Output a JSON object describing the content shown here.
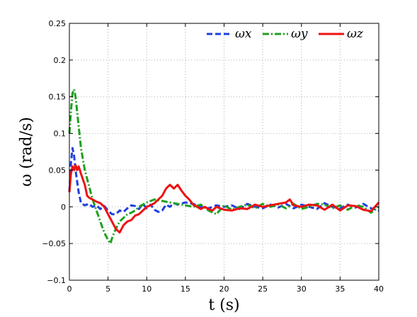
{
  "chart_data": {
    "type": "line",
    "title": "",
    "xlabel": "t (s)",
    "ylabel": "ω (rad/s)",
    "xlim": [
      0,
      40
    ],
    "ylim": [
      -0.1,
      0.25
    ],
    "xticks": [
      0,
      5,
      10,
      15,
      20,
      25,
      30,
      35,
      40
    ],
    "yticks": [
      -0.1,
      -0.05,
      0,
      0.05,
      0.1,
      0.15,
      0.2,
      0.25
    ],
    "xtick_labels": [
      "0",
      "5",
      "10",
      "15",
      "20",
      "25",
      "30",
      "35",
      "40"
    ],
    "ytick_labels": [
      "−0.1",
      "−0.05",
      "0",
      "0.05",
      "0.1",
      "0.15",
      "0.2",
      "0.25"
    ],
    "grid": true,
    "legend_position": "top-right",
    "series": [
      {
        "name": "ωx",
        "color": "#1f3fe0",
        "style": "dashed",
        "points": [
          [
            0,
            0.02
          ],
          [
            0.2,
            0.06
          ],
          [
            0.4,
            0.08
          ],
          [
            0.6,
            0.07
          ],
          [
            0.8,
            0.05
          ],
          [
            1,
            0.035
          ],
          [
            1.2,
            0.02
          ],
          [
            1.5,
            0.005
          ],
          [
            2,
            0.002
          ],
          [
            2.5,
            0.004
          ],
          [
            3,
            0
          ],
          [
            3.5,
            0.002
          ],
          [
            4,
            -0.003
          ],
          [
            4.5,
            0.001
          ],
          [
            5,
            -0.005
          ],
          [
            5.5,
            -0.01
          ],
          [
            6,
            -0.01
          ],
          [
            6.5,
            -0.005
          ],
          [
            7,
            -0.007
          ],
          [
            7.5,
            -0.002
          ],
          [
            8,
            0.002
          ],
          [
            8.5,
            0.001
          ],
          [
            9,
            -0.003
          ],
          [
            9.5,
            0.004
          ],
          [
            10,
            -0.002
          ],
          [
            10.5,
            0.003
          ],
          [
            11,
            -0.004
          ],
          [
            11.5,
            -0.007
          ],
          [
            12,
            -0.005
          ],
          [
            12.5,
            0.003
          ],
          [
            13,
            0
          ],
          [
            13.5,
            0.005
          ],
          [
            14,
            0.003
          ],
          [
            15,
            0.006
          ],
          [
            16,
            0.004
          ],
          [
            17,
            0
          ],
          [
            18,
            -0.002
          ],
          [
            19,
            0.002
          ],
          [
            20,
            0
          ],
          [
            21,
            0.002
          ],
          [
            22,
            -0.003
          ],
          [
            23,
            0.004
          ],
          [
            24,
            0
          ],
          [
            25,
            -0.002
          ],
          [
            26,
            0.003
          ],
          [
            27,
            -0.001
          ],
          [
            28,
            0.004
          ],
          [
            29,
            -0.002
          ],
          [
            30,
            0.003
          ],
          [
            31,
            0
          ],
          [
            32,
            -0.003
          ],
          [
            33,
            0.005
          ],
          [
            34,
            0
          ],
          [
            35,
            -0.002
          ],
          [
            36,
            0.003
          ],
          [
            37,
            -0.001
          ],
          [
            38,
            0.004
          ],
          [
            39,
            -0.002
          ],
          [
            40,
            -0.005
          ]
        ]
      },
      {
        "name": "ωy",
        "color": "#1fa01f",
        "style": "dashdot",
        "points": [
          [
            0,
            0.1
          ],
          [
            0.2,
            0.13
          ],
          [
            0.4,
            0.155
          ],
          [
            0.6,
            0.16
          ],
          [
            0.8,
            0.15
          ],
          [
            1,
            0.13
          ],
          [
            1.2,
            0.11
          ],
          [
            1.5,
            0.08
          ],
          [
            2,
            0.05
          ],
          [
            2.5,
            0.03
          ],
          [
            3,
            0.01
          ],
          [
            3.5,
            -0.005
          ],
          [
            4,
            -0.02
          ],
          [
            4.5,
            -0.035
          ],
          [
            5,
            -0.045
          ],
          [
            5.3,
            -0.05
          ],
          [
            5.6,
            -0.04
          ],
          [
            6,
            -0.03
          ],
          [
            6.5,
            -0.02
          ],
          [
            7,
            -0.015
          ],
          [
            7.5,
            -0.01
          ],
          [
            8,
            -0.008
          ],
          [
            8.5,
            -0.005
          ],
          [
            9,
            0
          ],
          [
            9.5,
            0.003
          ],
          [
            10,
            0.006
          ],
          [
            10.5,
            0.008
          ],
          [
            11,
            0.01
          ],
          [
            12,
            0.008
          ],
          [
            13,
            0.006
          ],
          [
            14,
            0.004
          ],
          [
            15,
            0.002
          ],
          [
            16,
            0
          ],
          [
            17,
            0.003
          ],
          [
            18,
            -0.005
          ],
          [
            19,
            -0.01
          ],
          [
            20,
            0.002
          ],
          [
            21,
            -0.004
          ],
          [
            22,
            0
          ],
          [
            23,
            0.003
          ],
          [
            24,
            -0.002
          ],
          [
            25,
            0.004
          ],
          [
            26,
            0
          ],
          [
            27,
            0.003
          ],
          [
            28,
            -0.002
          ],
          [
            29,
            0.004
          ],
          [
            30,
            -0.003
          ],
          [
            31,
            0
          ],
          [
            32,
            0.004
          ],
          [
            33,
            0.003
          ],
          [
            34,
            -0.002
          ],
          [
            35,
            0.002
          ],
          [
            36,
            -0.004
          ],
          [
            37,
            0.002
          ],
          [
            38,
            0
          ],
          [
            39,
            -0.008
          ],
          [
            40,
            0
          ]
        ]
      },
      {
        "name": "ωz",
        "color": "#ee1111",
        "style": "solid",
        "points": [
          [
            0,
            0.02
          ],
          [
            0.2,
            0.045
          ],
          [
            0.4,
            0.055
          ],
          [
            0.6,
            0.05
          ],
          [
            0.8,
            0.057
          ],
          [
            1,
            0.05
          ],
          [
            1.2,
            0.055
          ],
          [
            1.5,
            0.045
          ],
          [
            2,
            0.03
          ],
          [
            2.3,
            0.015
          ],
          [
            2.6,
            0.012
          ],
          [
            3,
            0.01
          ],
          [
            3.5,
            0.007
          ],
          [
            4,
            0.005
          ],
          [
            4.5,
            0
          ],
          [
            5,
            -0.01
          ],
          [
            5.5,
            -0.02
          ],
          [
            6,
            -0.03
          ],
          [
            6.5,
            -0.035
          ],
          [
            7,
            -0.025
          ],
          [
            7.5,
            -0.02
          ],
          [
            8,
            -0.018
          ],
          [
            8.5,
            -0.012
          ],
          [
            9,
            -0.01
          ],
          [
            9.5,
            -0.005
          ],
          [
            10,
            0
          ],
          [
            10.5,
            0.002
          ],
          [
            11,
            0.005
          ],
          [
            11.5,
            0.01
          ],
          [
            12,
            0.015
          ],
          [
            12.5,
            0.025
          ],
          [
            13,
            0.03
          ],
          [
            13.5,
            0.025
          ],
          [
            14,
            0.03
          ],
          [
            14.5,
            0.022
          ],
          [
            15,
            0.015
          ],
          [
            15.5,
            0.01
          ],
          [
            16,
            0.003
          ],
          [
            16.5,
            0
          ],
          [
            17,
            -0.003
          ],
          [
            17.5,
            0
          ],
          [
            18,
            -0.003
          ],
          [
            18.5,
            -0.005
          ],
          [
            19,
            0
          ],
          [
            19.5,
            -0.002
          ],
          [
            20,
            -0.004
          ],
          [
            21,
            -0.005
          ],
          [
            22,
            -0.002
          ],
          [
            23,
            -0.003
          ],
          [
            24,
            0.003
          ],
          [
            25,
            0
          ],
          [
            26,
            0.002
          ],
          [
            27,
            0.004
          ],
          [
            28,
            0.006
          ],
          [
            28.5,
            0.01
          ],
          [
            29,
            0.002
          ],
          [
            30,
            0
          ],
          [
            31,
            0.003
          ],
          [
            32,
            0.002
          ],
          [
            33,
            -0.004
          ],
          [
            34,
            0.003
          ],
          [
            35,
            -0.005
          ],
          [
            36,
            0.002
          ],
          [
            37,
            0.001
          ],
          [
            38,
            -0.004
          ],
          [
            39,
            -0.006
          ],
          [
            40,
            0.006
          ]
        ]
      }
    ]
  }
}
